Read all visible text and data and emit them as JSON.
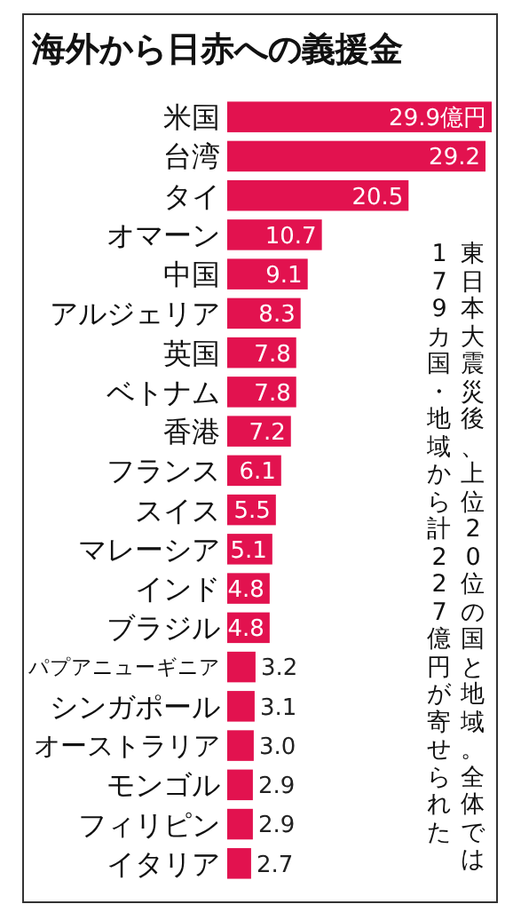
{
  "chart_data": {
    "type": "bar",
    "orientation": "horizontal",
    "title": "海外から日赤への義援金",
    "categories": [
      "米国",
      "台湾",
      "タイ",
      "オマーン",
      "中国",
      "アルジェリア",
      "英国",
      "ベトナム",
      "香港",
      "フランス",
      "スイス",
      "マレーシア",
      "インド",
      "ブラジル",
      "パプアニューギニア",
      "シンガポール",
      "オーストラリア",
      "モンゴル",
      "フィリピン",
      "イタリア"
    ],
    "values": [
      29.9,
      29.2,
      20.5,
      10.7,
      9.1,
      8.3,
      7.8,
      7.8,
      7.2,
      6.1,
      5.5,
      5.1,
      4.8,
      4.8,
      3.2,
      3.1,
      3.0,
      2.9,
      2.9,
      2.7
    ],
    "value_labels": [
      "29.9億円",
      "29.2",
      "20.5",
      "10.7",
      "9.1",
      "8.3",
      "7.8",
      "7.8",
      "7.2",
      "6.1",
      "5.5",
      "5.1",
      "4.8",
      "4.8",
      "3.2",
      "3.1",
      "3.0",
      "2.9",
      "2.9",
      "2.7"
    ],
    "color": "#e2124f",
    "annotations": [
      "東日本大震災後、上位20位の国と地域。全体では",
      "179カ国・地域から計227億円が寄せられた"
    ]
  }
}
